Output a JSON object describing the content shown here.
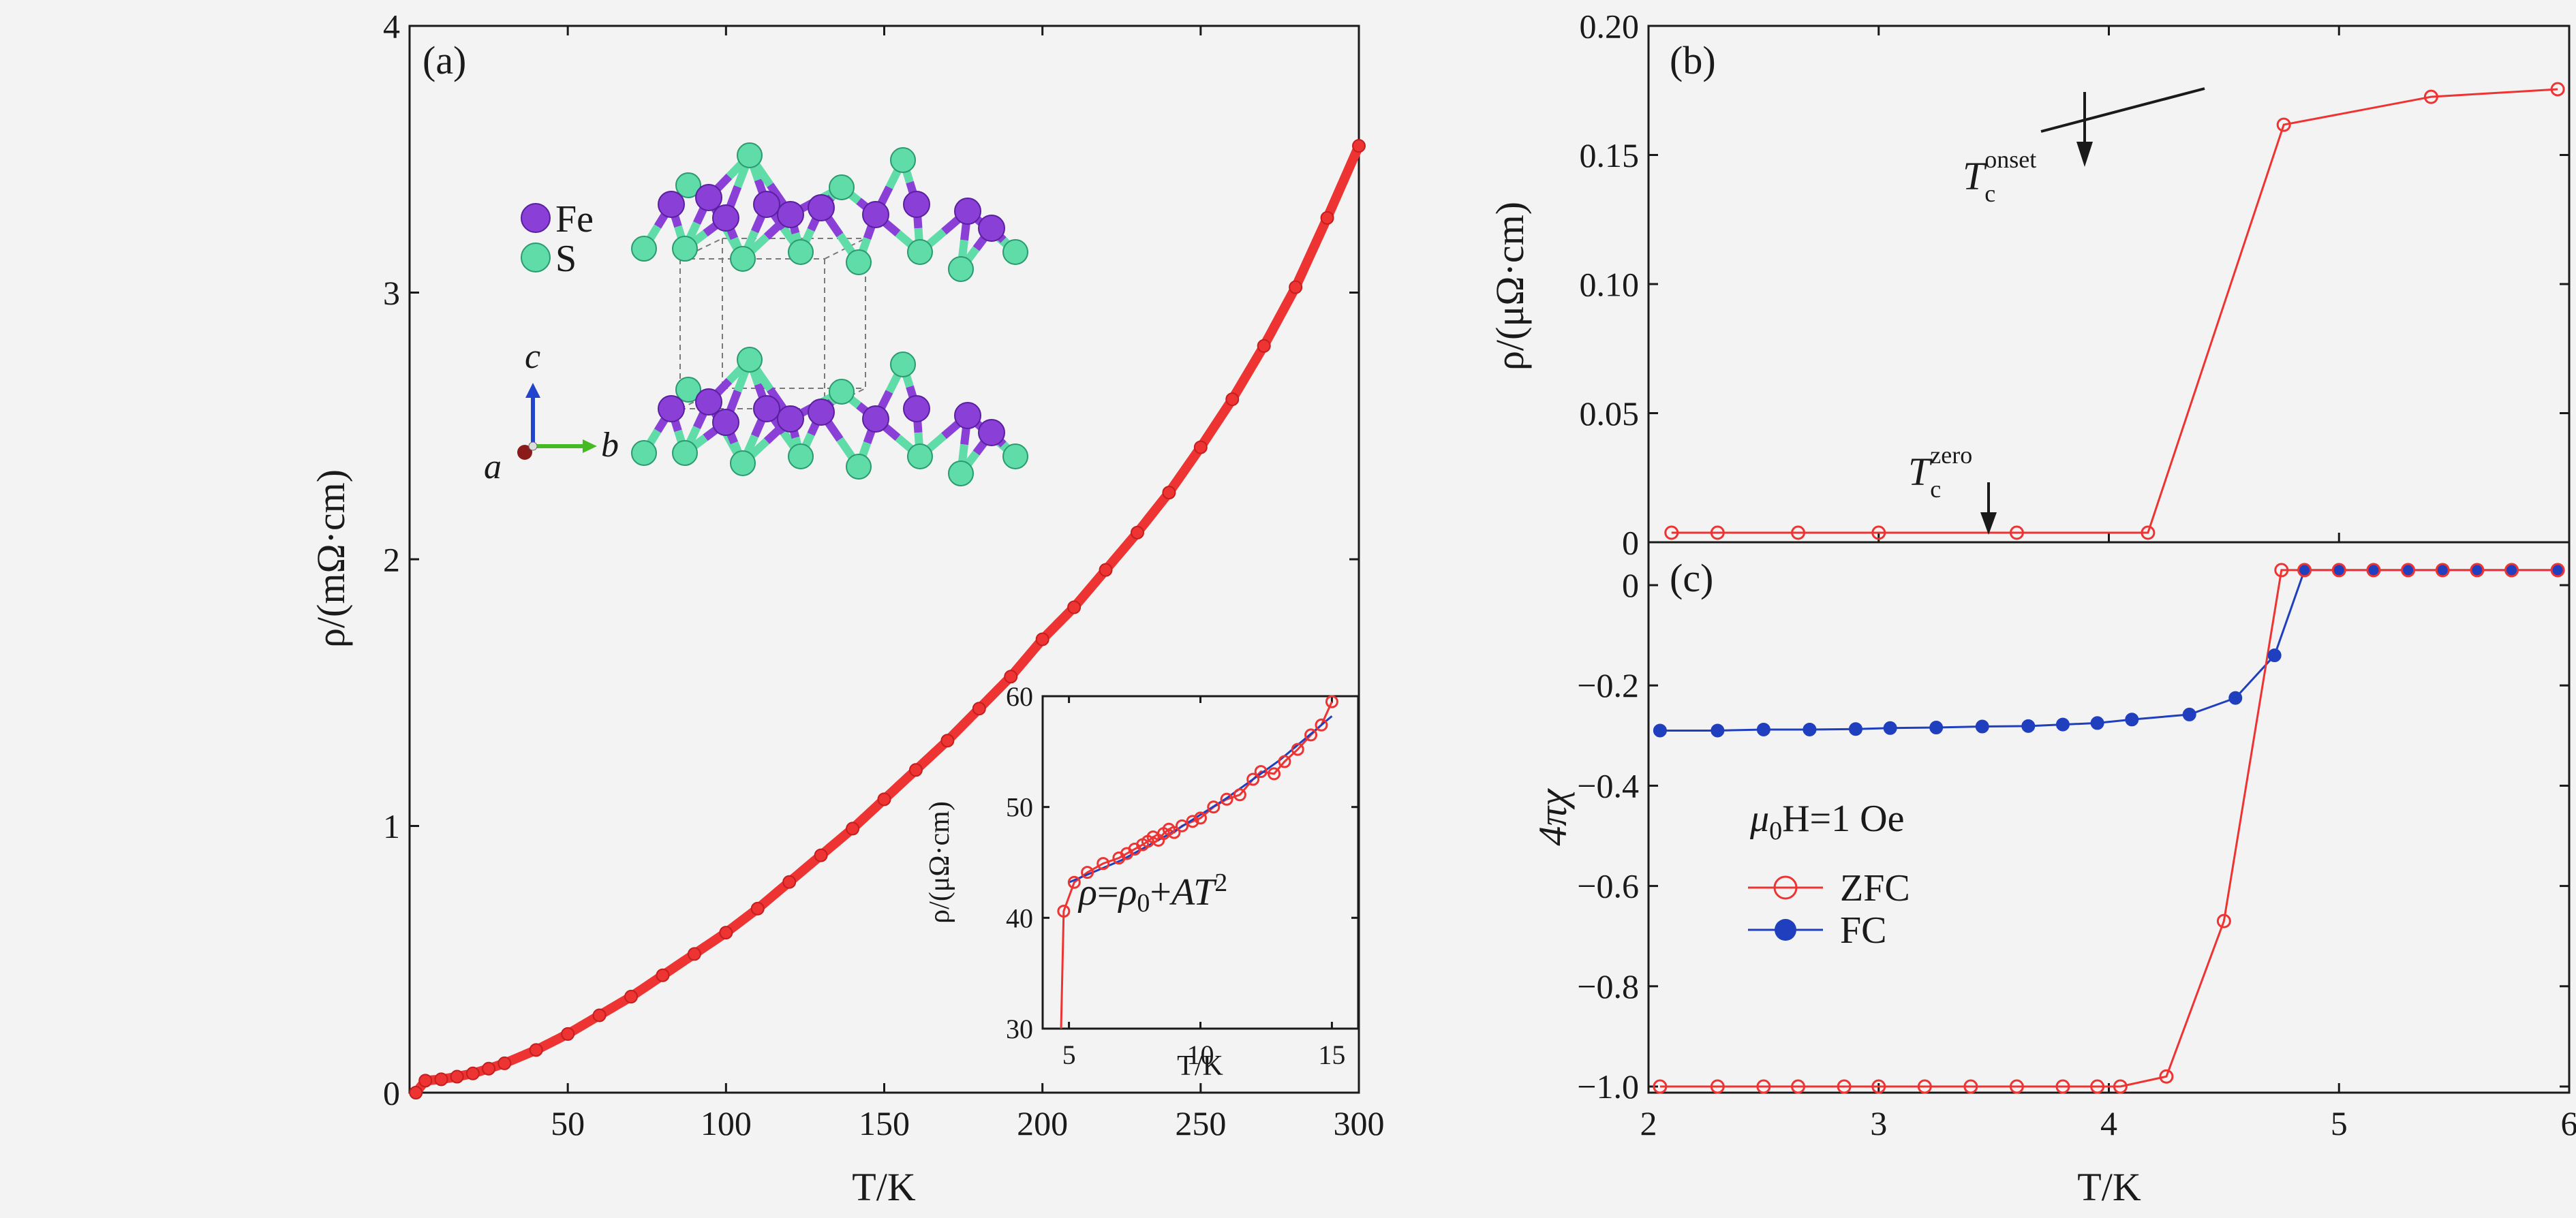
{
  "panel_labels": {
    "a": "(a)",
    "b": "(b)",
    "c": "(c)"
  },
  "colors": {
    "zfc": "#ee3333",
    "fc": "#1f3fbf",
    "fe_atom": "#8a3fd6",
    "s_atom": "#5fdca8",
    "axis": "#1a1a1a",
    "background": "#f3f3f3"
  },
  "structure_legend": {
    "fe": "Fe",
    "s": "S"
  },
  "axes_labels": {
    "c": "c",
    "a": "a",
    "b": "b"
  },
  "inset_formula": {
    "rho": "ρ",
    "eq": "=",
    "rho0_base": "ρ",
    "rho0_sub": "0",
    "plus": "+",
    "A": "A",
    "T": "T",
    "exp": "2"
  },
  "tc_labels": {
    "onset_main": "T",
    "onset_sub": "c",
    "onset_sup": "onset",
    "zero_main": "T",
    "zero_sub": "c",
    "zero_sup": "zero"
  },
  "field_label": {
    "mu": "μ",
    "sub": "0",
    "rest": "H=1 Oe"
  },
  "legend": {
    "zfc": "ZFC",
    "fc": "FC"
  },
  "axis_titles": {
    "a_y": "ρ/(mΩ·cm)",
    "a_x": "T/K",
    "b_y": "ρ/(μΩ·cm)",
    "c_y": "4πχ",
    "c_x": "T/K",
    "inset_y": "ρ/(μΩ·cm)",
    "inset_x": "T/K"
  },
  "chart_data": [
    {
      "id": "a",
      "type": "scatter",
      "xlabel": "T/K",
      "ylabel": "ρ/(mΩ·cm)",
      "xlim": [
        0,
        300
      ],
      "ylim": [
        0,
        4
      ],
      "xticks": [
        50,
        100,
        150,
        200,
        250,
        300
      ],
      "yticks": [
        0,
        1,
        2,
        3,
        4
      ],
      "series": [
        {
          "x": [
            2,
            5,
            10,
            15,
            20,
            25,
            30,
            40,
            50,
            60,
            70,
            80,
            90,
            100,
            110,
            120,
            130,
            140,
            150,
            160,
            170,
            180,
            190,
            200,
            210,
            220,
            230,
            240,
            250,
            260,
            270,
            280,
            290,
            300
          ],
          "values": [
            0.0,
            0.045,
            0.05,
            0.06,
            0.072,
            0.09,
            0.11,
            0.16,
            0.22,
            0.29,
            0.36,
            0.44,
            0.52,
            0.6,
            0.69,
            0.79,
            0.89,
            0.99,
            1.1,
            1.21,
            1.32,
            1.44,
            1.56,
            1.7,
            1.82,
            1.96,
            2.1,
            2.25,
            2.42,
            2.6,
            2.8,
            3.02,
            3.28,
            3.55
          ]
        }
      ]
    },
    {
      "id": "a-inset",
      "type": "scatter",
      "xlabel": "T/K",
      "ylabel": "ρ/(μΩ·cm)",
      "xlim": [
        4,
        16
      ],
      "ylim": [
        30,
        60
      ],
      "xticks": [
        5,
        10,
        15
      ],
      "yticks": [
        30,
        40,
        50,
        60
      ],
      "series": [
        {
          "name": "data",
          "x": [
            4.7,
            4.8,
            5.2,
            5.7,
            6.3,
            6.9,
            7.2,
            7.5,
            7.8,
            8.0,
            8.2,
            8.4,
            8.6,
            8.8,
            9.0,
            9.3,
            9.7,
            10.0,
            10.5,
            11.0,
            11.5,
            12.0,
            12.3,
            12.8,
            13.2,
            13.7,
            14.2,
            14.6,
            15.0
          ],
          "values": [
            30.0,
            40.6,
            43.2,
            44.1,
            44.9,
            45.4,
            45.8,
            46.2,
            46.6,
            46.9,
            47.3,
            47.0,
            47.6,
            48.0,
            47.7,
            48.3,
            48.7,
            49.0,
            50.0,
            50.7,
            51.1,
            52.5,
            53.2,
            53.0,
            54.1,
            55.2,
            56.5,
            57.4,
            59.5
          ]
        },
        {
          "name": "fit",
          "x": [
            5,
            7,
            9,
            11,
            13,
            15
          ],
          "values": [
            43.2,
            45.2,
            47.8,
            50.8,
            54.2,
            58.2
          ]
        }
      ]
    },
    {
      "id": "b",
      "type": "line",
      "ylabel": "ρ/(μΩ·cm)",
      "xlim": [
        2,
        6
      ],
      "ylim": [
        0,
        0.2
      ],
      "yticks": [
        0,
        0.05,
        0.1,
        0.15,
        0.2
      ],
      "series": [
        {
          "x": [
            2.1,
            2.3,
            2.65,
            3.0,
            3.6,
            4.17,
            4.76,
            5.4,
            5.95
          ],
          "values": [
            0.0,
            0.0,
            0.0,
            0.0,
            0.0,
            0.0,
            0.161,
            0.172,
            0.175
          ]
        }
      ]
    },
    {
      "id": "c",
      "type": "line",
      "xlabel": "T/K",
      "ylabel": "4πχ",
      "xlim": [
        2,
        6
      ],
      "ylim": [
        -1.0,
        0.05
      ],
      "xticks": [
        2,
        3,
        4,
        5,
        6
      ],
      "yticks": [
        0,
        -0.2,
        -0.4,
        -0.6,
        -0.8,
        -1.0
      ],
      "series": [
        {
          "name": "ZFC",
          "x": [
            2.05,
            2.3,
            2.5,
            2.65,
            2.85,
            3.0,
            3.2,
            3.4,
            3.6,
            3.8,
            3.95,
            4.05,
            4.25,
            4.5,
            4.75,
            4.85,
            5.0,
            5.15,
            5.3,
            5.45,
            5.6,
            5.75,
            5.95
          ],
          "values": [
            -1.0,
            -1.0,
            -1.0,
            -1.0,
            -1.0,
            -1.0,
            -1.0,
            -1.0,
            -1.0,
            -1.0,
            -1.0,
            -1.0,
            -0.98,
            -0.67,
            0.03,
            0.03,
            0.03,
            0.03,
            0.03,
            0.03,
            0.03,
            0.03,
            0.03
          ]
        },
        {
          "name": "FC",
          "x": [
            2.05,
            2.3,
            2.5,
            2.7,
            2.9,
            3.05,
            3.25,
            3.45,
            3.65,
            3.8,
            3.95,
            4.1,
            4.35,
            4.55,
            4.72,
            4.85,
            5.0,
            5.15,
            5.3,
            5.45,
            5.6,
            5.75,
            5.95
          ],
          "values": [
            -0.29,
            -0.29,
            -0.288,
            -0.288,
            -0.287,
            -0.285,
            -0.284,
            -0.282,
            -0.281,
            -0.278,
            -0.275,
            -0.268,
            -0.258,
            -0.225,
            -0.14,
            0.03,
            0.03,
            0.03,
            0.03,
            0.03,
            0.03,
            0.03,
            0.03
          ]
        }
      ]
    }
  ]
}
